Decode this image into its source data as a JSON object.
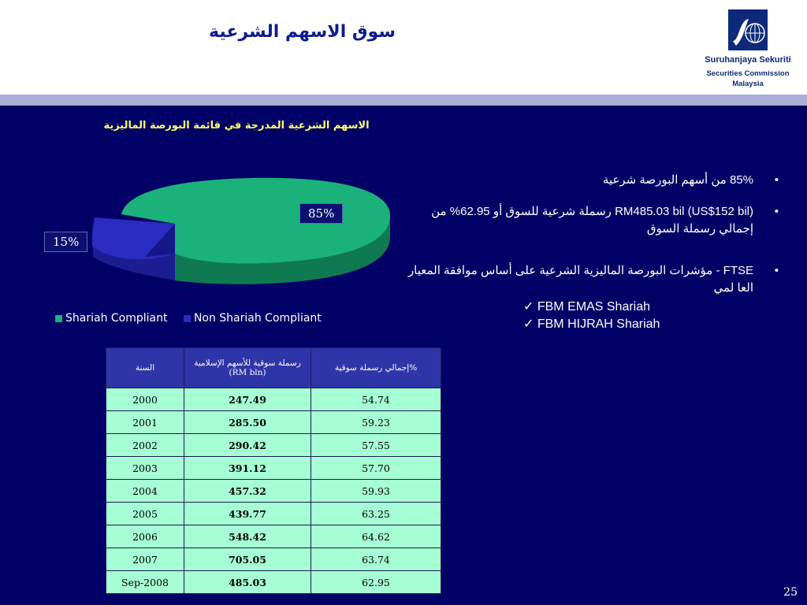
{
  "header": {
    "title": "سوق الاسهم الشرعية",
    "logo": {
      "name": "Suruhanjaya Sekuriti",
      "line2": "Securities Commission",
      "line3": "Malaysia"
    }
  },
  "chart_data": {
    "type": "pie",
    "title": "الاسهم الشرعية المدرجة في قائمة البورصة الماليزية",
    "categories": [
      "Shariah Compliant",
      "Non Shariah Compliant"
    ],
    "values": [
      85,
      15
    ],
    "labels": [
      "85%",
      "15%"
    ],
    "colors": [
      "#1ab27a",
      "#2a2bc0"
    ],
    "legend_position": "bottom"
  },
  "table": {
    "headers": [
      "السنة",
      "رسملة سوقية للأسهم الإسلامية (RM bln)",
      "إجمالي رسملة سوقية%"
    ],
    "rows": [
      [
        "2000",
        "247.49",
        "54.74"
      ],
      [
        "2001",
        "285.50",
        "59.23"
      ],
      [
        "2002",
        "290.42",
        "57.55"
      ],
      [
        "2003",
        "391.12",
        "57.70"
      ],
      [
        "2004",
        "457.32",
        "59.93"
      ],
      [
        "2005",
        "439.77",
        "63.25"
      ],
      [
        "2006",
        "548.42",
        "64.62"
      ],
      [
        "2007",
        "705.05",
        "63.74"
      ],
      [
        "Sep-2008",
        "485.03",
        "62.95"
      ]
    ]
  },
  "bullets": [
    "85% من أسهم البورصة شرعية",
    "RM485.03 bil (US$152 bil) رسملة شرعية للسوق أو 62.95% من إجمالي رسملة السوق",
    "FTSE - مؤشرات البورصة الماليزية الشرعية على أساس موافقة المعيار العا لمي"
  ],
  "sub_bullets": [
    "FBM EMAS Shariah",
    "FBM HIJRAH Shariah"
  ],
  "page_number": "25"
}
